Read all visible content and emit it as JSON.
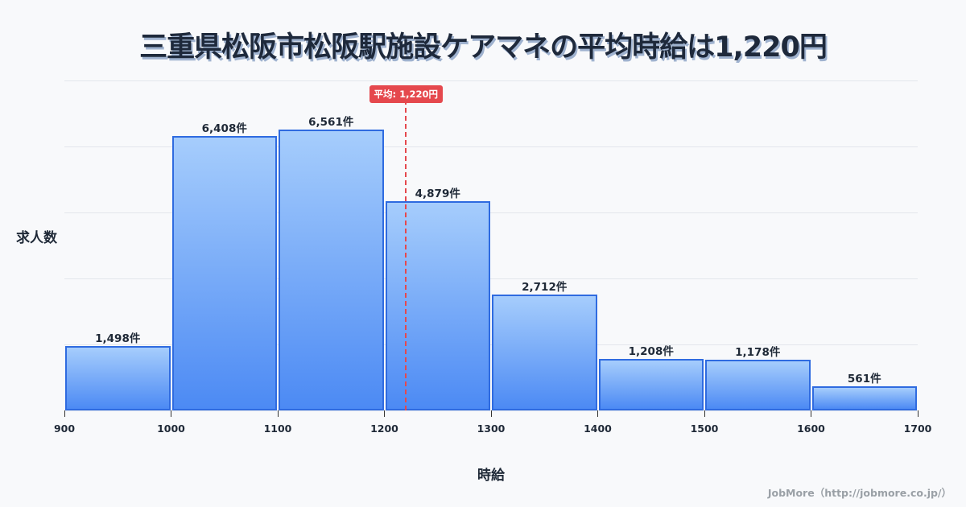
{
  "title": "三重県松阪市松阪駅施設ケアマネの平均時給は1,220円",
  "chart_data": {
    "type": "bar",
    "title": "三重県松阪市松阪駅施設ケアマネの平均時給は1,220円",
    "xlabel": "時給",
    "ylabel": "求人数",
    "bins": [
      [
        900,
        1000
      ],
      [
        1000,
        1100
      ],
      [
        1100,
        1200
      ],
      [
        1200,
        1300
      ],
      [
        1300,
        1400
      ],
      [
        1400,
        1500
      ],
      [
        1500,
        1600
      ],
      [
        1600,
        1700
      ]
    ],
    "categories": [
      "900-1000",
      "1000-1100",
      "1100-1200",
      "1200-1300",
      "1300-1400",
      "1400-1500",
      "1500-1600",
      "1600-1700"
    ],
    "values": [
      1498,
      6408,
      6561,
      4879,
      2712,
      1208,
      1178,
      561
    ],
    "value_labels": [
      "1,498件",
      "6,408件",
      "6,561件",
      "4,879件",
      "2,712件",
      "1,208件",
      "1,178件",
      "561件"
    ],
    "x_ticks": [
      "900",
      "1000",
      "1100",
      "1200",
      "1300",
      "1400",
      "1500",
      "1600",
      "1700"
    ],
    "xlim": [
      900,
      1700
    ],
    "ylim": [
      0,
      7700
    ],
    "grid": true,
    "mean": 1220,
    "mean_label": "平均: 1,220円",
    "colors": {
      "bar_top": "#a6cdfc",
      "bar_bottom": "#4c8af4",
      "bar_border": "#2f6be0",
      "mean": "#e5484d"
    }
  },
  "credit": "JobMore（http://jobmore.co.jp/）"
}
